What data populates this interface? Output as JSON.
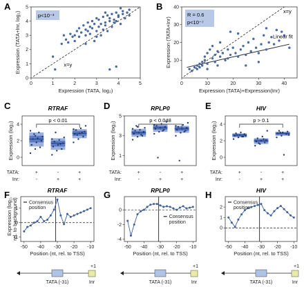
{
  "colors": {
    "point": "#4a6a9e",
    "box": "#4a6fc0",
    "box_inner": "#3a5fb5",
    "stat_box": "#b8c8e6",
    "line": "#3d5f9a",
    "tata_box": "#aec4e6",
    "inr_box": "#e8eca8"
  },
  "chart_data": [
    {
      "panel": "A",
      "type": "scatter",
      "xlabel": "Expression (TATA, log₂)",
      "ylabel": "Expression (TATA+Inr, log₂)",
      "xlim": [
        0,
        5
      ],
      "ylim": [
        0,
        5
      ],
      "xticks": [
        "0",
        "1",
        "2",
        "3",
        "4",
        "5"
      ],
      "yticks": [
        "0",
        "1",
        "2",
        "3",
        "4",
        "5"
      ],
      "annotation": "p<10⁻³",
      "diagonal_label": "x=y",
      "points": [
        [
          1.0,
          1.5
        ],
        [
          1.1,
          0.6
        ],
        [
          1.4,
          2.4
        ],
        [
          1.5,
          3.0
        ],
        [
          1.6,
          2.7
        ],
        [
          1.7,
          2.5
        ],
        [
          1.8,
          3.1
        ],
        [
          1.9,
          2.9
        ],
        [
          2.0,
          3.0
        ],
        [
          2.1,
          3.3
        ],
        [
          2.2,
          3.5
        ],
        [
          2.2,
          2.9
        ],
        [
          2.3,
          3.2
        ],
        [
          2.4,
          3.7
        ],
        [
          2.5,
          3.4
        ],
        [
          2.5,
          3.0
        ],
        [
          2.6,
          3.9
        ],
        [
          2.6,
          3.3
        ],
        [
          2.7,
          3.6
        ],
        [
          2.7,
          3.1
        ],
        [
          2.8,
          4.0
        ],
        [
          2.8,
          3.5
        ],
        [
          2.9,
          2.6
        ],
        [
          2.9,
          3.8
        ],
        [
          3.0,
          3.3
        ],
        [
          3.0,
          4.2
        ],
        [
          3.0,
          2.9
        ],
        [
          3.1,
          3.6
        ],
        [
          3.1,
          4.1
        ],
        [
          3.2,
          3.0
        ],
        [
          3.2,
          3.8
        ],
        [
          3.3,
          4.3
        ],
        [
          3.3,
          3.4
        ],
        [
          3.4,
          3.9
        ],
        [
          3.4,
          3.7
        ],
        [
          3.5,
          4.4
        ],
        [
          3.5,
          3.3
        ],
        [
          3.6,
          4.0
        ],
        [
          3.6,
          4.2
        ],
        [
          3.7,
          3.6
        ],
        [
          3.7,
          4.5
        ],
        [
          3.8,
          3.9
        ],
        [
          3.8,
          4.1
        ],
        [
          3.9,
          4.6
        ],
        [
          3.9,
          4.0
        ],
        [
          4.0,
          4.3
        ],
        [
          4.0,
          4.4
        ],
        [
          4.1,
          3.8
        ],
        [
          4.2,
          4.7
        ],
        [
          4.2,
          4.5
        ],
        [
          4.3,
          4.2
        ],
        [
          4.4,
          4.6
        ],
        [
          4.5,
          4.8
        ],
        [
          4.5,
          4.4
        ],
        [
          3.6,
          0.6
        ],
        [
          3.9,
          0.8
        ],
        [
          2.5,
          2.4
        ],
        [
          3.4,
          4.6
        ],
        [
          4.1,
          4.9
        ],
        [
          2.0,
          2.6
        ]
      ]
    },
    {
      "panel": "B",
      "type": "scatter",
      "xlabel": "Expression (TATA)+Expression(Inr)",
      "ylabel": "Expression (TATA+Inr)",
      "xlim": [
        0,
        45
      ],
      "ylim": [
        0,
        40
      ],
      "xticks": [
        "0",
        "10",
        "20",
        "30",
        "40"
      ],
      "yticks": [
        "10",
        "20",
        "30",
        "40"
      ],
      "annotation_r": "R = 0.6",
      "annotation_p": "p<10⁻⁷",
      "diagonal_label": "x=y",
      "fit_label": "Linear fit",
      "fit": [
        [
          2,
          6
        ],
        [
          42,
          19
        ]
      ],
      "points": [
        [
          3,
          5
        ],
        [
          4,
          4
        ],
        [
          5,
          6
        ],
        [
          6,
          7
        ],
        [
          6,
          5
        ],
        [
          7,
          8
        ],
        [
          7,
          6
        ],
        [
          8,
          9
        ],
        [
          8,
          7
        ],
        [
          9,
          10
        ],
        [
          9,
          12
        ],
        [
          10,
          14
        ],
        [
          10,
          8
        ],
        [
          11,
          16
        ],
        [
          12,
          11
        ],
        [
          12,
          18
        ],
        [
          13,
          13
        ],
        [
          13,
          9
        ],
        [
          14,
          15
        ],
        [
          15,
          12
        ],
        [
          15,
          20
        ],
        [
          16,
          14
        ],
        [
          17,
          10
        ],
        [
          18,
          16
        ],
        [
          18,
          11
        ],
        [
          19,
          13
        ],
        [
          20,
          17
        ],
        [
          21,
          14
        ],
        [
          22,
          12
        ],
        [
          22,
          25
        ],
        [
          23,
          16
        ],
        [
          24,
          18
        ],
        [
          25,
          13
        ],
        [
          26,
          20
        ],
        [
          27,
          15
        ],
        [
          28,
          22
        ],
        [
          29,
          17
        ],
        [
          30,
          14
        ],
        [
          31,
          19
        ],
        [
          32,
          24
        ],
        [
          33,
          28
        ],
        [
          33,
          16
        ],
        [
          34,
          20
        ],
        [
          35,
          23
        ],
        [
          36,
          19
        ],
        [
          37,
          27
        ],
        [
          38,
          21
        ],
        [
          39,
          26
        ],
        [
          40,
          24
        ],
        [
          42,
          17
        ],
        [
          10,
          5
        ],
        [
          14,
          7
        ],
        [
          19,
          26
        ],
        [
          25,
          7
        ],
        [
          30,
          9
        ]
      ]
    },
    {
      "panel": "C",
      "type": "box",
      "gene": "RTRAF",
      "ylabel": "Expression (log₂)",
      "ylim": [
        -1,
        5
      ],
      "yticks": [
        "0",
        "2",
        "4"
      ],
      "tata_label": "TATA:",
      "inr_label": "Inr:",
      "tata_row": [
        "+",
        "-",
        "+"
      ],
      "inr_row": [
        "-",
        "+",
        "+"
      ],
      "stat": "p < 0.01",
      "boxes": [
        {
          "q1": 1.3,
          "median": 2.2,
          "q3": 3.0,
          "iq1": 1.8,
          "iq3": 2.6,
          "points": [
            0.5,
            1.0,
            1.2,
            1.5,
            1.8,
            2.0,
            2.2,
            2.3,
            2.5,
            2.8,
            3.0,
            3.2,
            2.6
          ]
        },
        {
          "q1": 0.9,
          "median": 1.7,
          "q3": 2.3,
          "iq1": 1.3,
          "iq3": 2.0,
          "points": [
            0.3,
            0.8,
            1.0,
            1.3,
            1.5,
            1.7,
            1.9,
            2.1,
            2.4,
            3.0,
            1.6,
            2.2
          ]
        },
        {
          "q1": 2.3,
          "median": 2.9,
          "q3": 3.4,
          "iq1": 2.6,
          "iq3": 3.2,
          "points": [
            1.8,
            2.2,
            2.5,
            2.8,
            2.9,
            3.1,
            3.3,
            3.5,
            3.8,
            2.7,
            3.0,
            3.4
          ]
        }
      ]
    },
    {
      "panel": "D",
      "type": "box",
      "gene": "RPLP0",
      "ylabel": "Expression (log₂)",
      "ylim": [
        0,
        5
      ],
      "yticks": [
        "1",
        "3",
        "5"
      ],
      "tata_label": "TATA:",
      "inr_label": "Inr:",
      "tata_row": [
        "+",
        "-",
        "+"
      ],
      "inr_row": [
        "-",
        "+",
        "+"
      ],
      "stat": "p < 0.048",
      "boxes": [
        {
          "q1": 2.9,
          "median": 3.3,
          "q3": 3.7,
          "iq1": 3.1,
          "iq3": 3.5,
          "points": [
            2.6,
            2.9,
            3.0,
            3.2,
            3.3,
            3.4,
            3.5,
            3.6,
            3.8,
            4.0,
            3.1,
            3.7,
            3.9
          ]
        },
        {
          "q1": 3.4,
          "median": 3.8,
          "q3": 4.2,
          "iq1": 3.6,
          "iq3": 4.0,
          "points": [
            3.2,
            3.4,
            3.6,
            3.7,
            3.8,
            3.9,
            4.0,
            4.2,
            4.4,
            0.8,
            3.5,
            4.1
          ]
        },
        {
          "q1": 3.3,
          "median": 3.7,
          "q3": 4.0,
          "iq1": 3.5,
          "iq3": 3.9,
          "points": [
            3.0,
            3.3,
            3.5,
            3.6,
            3.7,
            3.8,
            3.9,
            4.1,
            4.3,
            0.5,
            3.4,
            4.0
          ]
        }
      ]
    },
    {
      "panel": "E",
      "type": "box",
      "gene": "HIV",
      "ylabel": "Expression (log₂)",
      "ylim": [
        -1,
        5
      ],
      "yticks": [
        "0",
        "2",
        "4"
      ],
      "tata_label": "TATA:",
      "inr_label": "Inr:",
      "tata_row": [
        "+",
        "-",
        "+"
      ],
      "inr_row": [
        "-",
        "+",
        "+"
      ],
      "stat": "p > 0.1",
      "boxes": [
        {
          "q1": 2.4,
          "median": 2.7,
          "q3": 2.9,
          "iq1": 2.5,
          "iq3": 2.8,
          "points": [
            2.2,
            2.4,
            2.5,
            2.6,
            2.7,
            2.8,
            2.9,
            3.0,
            2.6,
            2.7,
            2.5
          ]
        },
        {
          "q1": 1.6,
          "median": 2.0,
          "q3": 2.3,
          "iq1": 1.8,
          "iq3": 2.2,
          "points": [
            1.4,
            1.6,
            1.8,
            1.9,
            2.0,
            2.1,
            2.3,
            2.5,
            3.2,
            1.7,
            2.2
          ]
        },
        {
          "q1": 2.6,
          "median": 2.9,
          "q3": 3.1,
          "iq1": 2.7,
          "iq3": 3.0,
          "points": [
            2.4,
            2.6,
            2.8,
            2.9,
            3.0,
            3.1,
            3.2,
            0.3,
            2.7,
            3.0
          ]
        }
      ]
    },
    {
      "panel": "F",
      "type": "line",
      "gene": "RTRAF",
      "ylabel": "Expression (log₂, rel. to background)",
      "xlabel": "Position (nt, rel. to TSS)",
      "xlim": [
        -52,
        -8
      ],
      "ylim": [
        -1.3,
        1.8
      ],
      "xticks": [
        "-50",
        "-40",
        "-30",
        "-20",
        "-10"
      ],
      "yticks": [
        "-1",
        "0",
        "1"
      ],
      "legend": "Consensus position",
      "consensus_x": -31,
      "baseline": 0,
      "x": [
        -50,
        -48,
        -46,
        -44,
        -42,
        -40,
        -38,
        -36,
        -34,
        -32,
        -30,
        -28,
        -26,
        -24,
        -22,
        -20,
        -18,
        -16,
        -14,
        -12,
        -10
      ],
      "y": [
        -0.6,
        -0.3,
        -0.2,
        0.0,
        0.1,
        0.4,
        0.1,
        0.2,
        0.5,
        0.9,
        1.6,
        0.5,
        -0.1,
        0.6,
        0.4,
        0.5,
        0.6,
        0.7,
        0.8,
        0.9,
        1.0
      ]
    },
    {
      "panel": "G",
      "type": "line",
      "gene": "RPLP0",
      "xlabel": "Position (nt, rel. to TSS)",
      "xlim": [
        -52,
        -8
      ],
      "ylim": [
        -4.3,
        1.8
      ],
      "xticks": [
        "-50",
        "-40",
        "-30",
        "-20",
        "-10"
      ],
      "yticks": [
        "-4",
        "-2",
        "0"
      ],
      "legend": "Consensus position",
      "consensus_x": -31,
      "baseline": 0,
      "x": [
        -50,
        -48,
        -46,
        -44,
        -42,
        -40,
        -38,
        -36,
        -34,
        -32,
        -30,
        -28,
        -26,
        -24,
        -22,
        -20,
        -18,
        -16,
        -14,
        -12,
        -10
      ],
      "y": [
        -1.5,
        -3.5,
        -2.0,
        -0.6,
        -0.2,
        0.0,
        0.4,
        0.7,
        0.8,
        0.8,
        0.6,
        0.4,
        0.5,
        0.4,
        0.2,
        0.0,
        0.3,
        0.5,
        0.2,
        0.3,
        0.4
      ]
    },
    {
      "panel": "H",
      "type": "line",
      "gene": "HIV",
      "xlabel": "Position (nt, rel. to TSS)",
      "xlim": [
        -52,
        -8
      ],
      "ylim": [
        -1.3,
        3.0
      ],
      "xticks": [
        "-50",
        "-40",
        "-30",
        "-20",
        "-10"
      ],
      "yticks": [
        "0",
        "1",
        "2"
      ],
      "legend": "Consensus position",
      "consensus_x": -31,
      "baseline": 0,
      "x": [
        -50,
        -48,
        -46,
        -44,
        -42,
        -40,
        -38,
        -36,
        -34,
        -32,
        -30,
        -28,
        -26,
        -24,
        -22,
        -20,
        -18,
        -16,
        -14,
        -12,
        -10
      ],
      "y": [
        1.0,
        0.5,
        0.1,
        0.8,
        1.3,
        1.7,
        1.9,
        2.0,
        2.1,
        2.2,
        2.3,
        1.7,
        1.4,
        1.2,
        1.6,
        1.9,
        2.1,
        1.8,
        1.5,
        1.2,
        1.0
      ]
    }
  ],
  "promoter_diagram": {
    "tata_label": "TATA (-31)",
    "inr_label": "Inr",
    "plus_one_label": "+1"
  }
}
